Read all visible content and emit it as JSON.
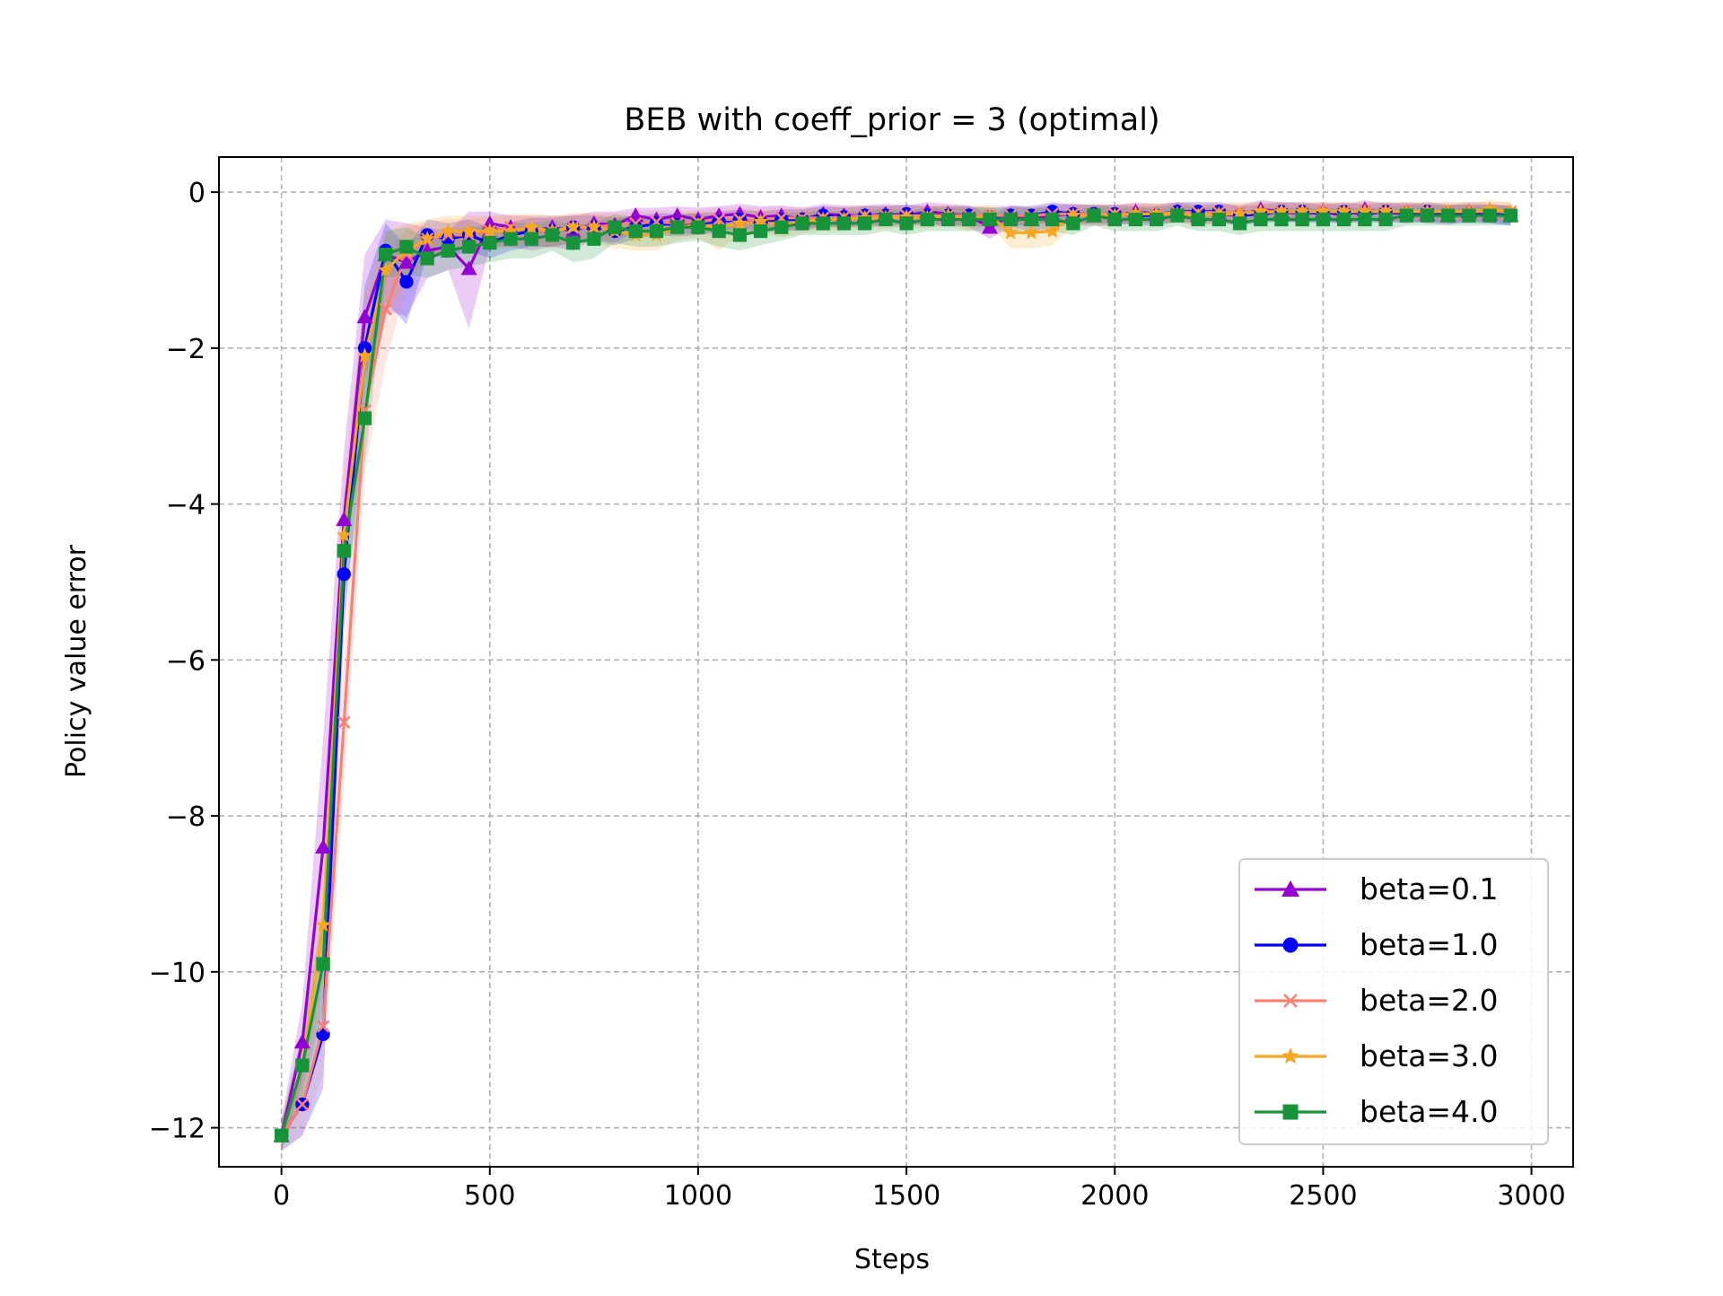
{
  "chart_data": {
    "type": "line",
    "title": "BEB with coeff_prior = 3 (optimal)",
    "xlabel": "Steps",
    "ylabel": "Policy value error",
    "xlim": [
      -150,
      3100
    ],
    "ylim": [
      -12.5,
      0.45
    ],
    "xticks": [
      0,
      500,
      1000,
      1500,
      2000,
      2500,
      3000
    ],
    "yticks": [
      0,
      -2,
      -4,
      -6,
      -8,
      -10,
      -12
    ],
    "grid": true,
    "legend_position": "lower-right",
    "x": [
      0,
      50,
      100,
      150,
      200,
      250,
      300,
      350,
      400,
      450,
      500,
      550,
      600,
      650,
      700,
      750,
      800,
      850,
      900,
      950,
      1000,
      1050,
      1100,
      1150,
      1200,
      1250,
      1300,
      1350,
      1400,
      1450,
      1500,
      1550,
      1600,
      1650,
      1700,
      1750,
      1800,
      1850,
      1900,
      1950,
      2000,
      2050,
      2100,
      2150,
      2200,
      2250,
      2300,
      2350,
      2400,
      2450,
      2500,
      2550,
      2600,
      2650,
      2700,
      2750,
      2800,
      2850,
      2900,
      2950
    ],
    "series": [
      {
        "name": "beta=0.1",
        "color": "#9400d3",
        "marker": "triangle",
        "values": [
          -12.1,
          -10.9,
          -8.4,
          -4.2,
          -1.6,
          -0.8,
          -0.9,
          -0.75,
          -0.7,
          -0.98,
          -0.4,
          -0.45,
          -0.5,
          -0.45,
          -0.5,
          -0.4,
          -0.42,
          -0.3,
          -0.35,
          -0.3,
          -0.35,
          -0.3,
          -0.28,
          -0.32,
          -0.3,
          -0.35,
          -0.28,
          -0.3,
          -0.3,
          -0.28,
          -0.3,
          -0.25,
          -0.28,
          -0.3,
          -0.45,
          -0.3,
          -0.35,
          -0.3,
          -0.28,
          -0.3,
          -0.3,
          -0.25,
          -0.28,
          -0.25,
          -0.3,
          -0.28,
          -0.3,
          -0.22,
          -0.25,
          -0.28,
          -0.25,
          -0.3,
          -0.22,
          -0.28,
          -0.25,
          -0.28,
          -0.3,
          -0.25,
          -0.28,
          -0.3
        ],
        "lower": [
          -12.3,
          -11.4,
          -9.8,
          -5.1,
          -2.4,
          -1.5,
          -1.6,
          -1.1,
          -1.0,
          -1.75,
          -0.7,
          -0.7,
          -0.75,
          -0.7,
          -0.75,
          -0.6,
          -0.65,
          -0.5,
          -0.55,
          -0.5,
          -0.55,
          -0.5,
          -0.45,
          -0.5,
          -0.48,
          -0.5,
          -0.45,
          -0.45,
          -0.45,
          -0.43,
          -0.45,
          -0.4,
          -0.42,
          -0.45,
          -0.6,
          -0.45,
          -0.5,
          -0.45,
          -0.42,
          -0.43,
          -0.43,
          -0.38,
          -0.4,
          -0.38,
          -0.42,
          -0.4,
          -0.43,
          -0.35,
          -0.38,
          -0.4,
          -0.37,
          -0.42,
          -0.35,
          -0.4,
          -0.37,
          -0.4,
          -0.42,
          -0.37,
          -0.4,
          -0.42
        ],
        "upper": [
          -11.9,
          -10.4,
          -7.0,
          -3.3,
          -0.8,
          -0.35,
          -0.4,
          -0.45,
          -0.5,
          -0.25,
          -0.25,
          -0.3,
          -0.3,
          -0.3,
          -0.3,
          -0.25,
          -0.25,
          -0.2,
          -0.2,
          -0.18,
          -0.2,
          -0.18,
          -0.15,
          -0.18,
          -0.17,
          -0.2,
          -0.15,
          -0.17,
          -0.17,
          -0.15,
          -0.17,
          -0.13,
          -0.15,
          -0.17,
          -0.3,
          -0.17,
          -0.2,
          -0.17,
          -0.15,
          -0.17,
          -0.17,
          -0.13,
          -0.15,
          -0.13,
          -0.17,
          -0.15,
          -0.17,
          -0.1,
          -0.13,
          -0.15,
          -0.13,
          -0.17,
          -0.1,
          -0.15,
          -0.13,
          -0.15,
          -0.17,
          -0.13,
          -0.15,
          -0.17
        ]
      },
      {
        "name": "beta=1.0",
        "color": "#0000ff",
        "marker": "circle",
        "values": [
          -12.1,
          -11.7,
          -10.8,
          -4.9,
          -2.0,
          -0.75,
          -1.15,
          -0.55,
          -0.6,
          -0.55,
          -0.65,
          -0.55,
          -0.5,
          -0.5,
          -0.45,
          -0.45,
          -0.5,
          -0.45,
          -0.4,
          -0.42,
          -0.4,
          -0.38,
          -0.35,
          -0.38,
          -0.35,
          -0.35,
          -0.3,
          -0.32,
          -0.3,
          -0.3,
          -0.28,
          -0.3,
          -0.3,
          -0.3,
          -0.32,
          -0.3,
          -0.3,
          -0.25,
          -0.28,
          -0.28,
          -0.28,
          -0.3,
          -0.3,
          -0.25,
          -0.25,
          -0.25,
          -0.3,
          -0.28,
          -0.25,
          -0.25,
          -0.28,
          -0.25,
          -0.28,
          -0.25,
          -0.28,
          -0.25,
          -0.28,
          -0.28,
          -0.28,
          -0.3
        ],
        "lower": [
          -12.3,
          -12.1,
          -11.5,
          -5.6,
          -2.9,
          -1.4,
          -1.7,
          -0.8,
          -0.85,
          -0.75,
          -0.85,
          -0.75,
          -0.7,
          -0.7,
          -0.65,
          -0.62,
          -0.68,
          -0.6,
          -0.55,
          -0.57,
          -0.55,
          -0.52,
          -0.5,
          -0.52,
          -0.5,
          -0.48,
          -0.43,
          -0.45,
          -0.43,
          -0.43,
          -0.4,
          -0.43,
          -0.43,
          -0.43,
          -0.45,
          -0.43,
          -0.43,
          -0.38,
          -0.4,
          -0.4,
          -0.4,
          -0.43,
          -0.43,
          -0.38,
          -0.38,
          -0.38,
          -0.43,
          -0.4,
          -0.38,
          -0.38,
          -0.4,
          -0.38,
          -0.4,
          -0.38,
          -0.4,
          -0.38,
          -0.4,
          -0.4,
          -0.4,
          -0.43
        ],
        "upper": [
          -11.9,
          -11.2,
          -10.0,
          -4.1,
          -1.2,
          -0.4,
          -0.7,
          -0.35,
          -0.4,
          -0.35,
          -0.45,
          -0.38,
          -0.33,
          -0.33,
          -0.3,
          -0.3,
          -0.33,
          -0.3,
          -0.27,
          -0.28,
          -0.27,
          -0.25,
          -0.22,
          -0.25,
          -0.22,
          -0.22,
          -0.18,
          -0.2,
          -0.18,
          -0.18,
          -0.16,
          -0.18,
          -0.18,
          -0.18,
          -0.2,
          -0.18,
          -0.18,
          -0.13,
          -0.16,
          -0.16,
          -0.16,
          -0.18,
          -0.18,
          -0.13,
          -0.13,
          -0.13,
          -0.18,
          -0.16,
          -0.13,
          -0.13,
          -0.16,
          -0.13,
          -0.16,
          -0.13,
          -0.16,
          -0.13,
          -0.16,
          -0.16,
          -0.16,
          -0.18
        ]
      },
      {
        "name": "beta=2.0",
        "color": "#fa8072",
        "marker": "x",
        "values": [
          -12.1,
          -11.7,
          -10.7,
          -6.8,
          -2.8,
          -1.5,
          -0.8,
          -0.6,
          -0.55,
          -0.55,
          -0.5,
          -0.45,
          -0.5,
          -0.5,
          -0.45,
          -0.45,
          -0.42,
          -0.4,
          -0.38,
          -0.4,
          -0.38,
          -0.35,
          -0.35,
          -0.35,
          -0.33,
          -0.33,
          -0.33,
          -0.32,
          -0.3,
          -0.3,
          -0.3,
          -0.3,
          -0.3,
          -0.3,
          -0.3,
          -0.3,
          -0.3,
          -0.28,
          -0.28,
          -0.28,
          -0.28,
          -0.28,
          -0.28,
          -0.26,
          -0.26,
          -0.26,
          -0.26,
          -0.26,
          -0.25,
          -0.25,
          -0.25,
          -0.25,
          -0.25,
          -0.25,
          -0.25,
          -0.25,
          -0.25,
          -0.25,
          -0.25,
          -0.25
        ],
        "lower": [
          -12.3,
          -12.1,
          -11.3,
          -7.6,
          -3.6,
          -2.2,
          -1.2,
          -0.85,
          -0.78,
          -0.75,
          -0.7,
          -0.65,
          -0.7,
          -0.7,
          -0.62,
          -0.62,
          -0.58,
          -0.55,
          -0.53,
          -0.55,
          -0.53,
          -0.5,
          -0.5,
          -0.5,
          -0.47,
          -0.47,
          -0.47,
          -0.45,
          -0.43,
          -0.43,
          -0.43,
          -0.43,
          -0.43,
          -0.43,
          -0.43,
          -0.43,
          -0.43,
          -0.4,
          -0.4,
          -0.4,
          -0.4,
          -0.4,
          -0.4,
          -0.38,
          -0.38,
          -0.38,
          -0.38,
          -0.38,
          -0.37,
          -0.37,
          -0.37,
          -0.37,
          -0.37,
          -0.37,
          -0.37,
          -0.37,
          -0.37,
          -0.37,
          -0.37,
          -0.37
        ],
        "upper": [
          -11.9,
          -11.3,
          -10.0,
          -6.0,
          -2.0,
          -0.9,
          -0.45,
          -0.38,
          -0.35,
          -0.35,
          -0.32,
          -0.28,
          -0.32,
          -0.32,
          -0.28,
          -0.28,
          -0.27,
          -0.25,
          -0.23,
          -0.25,
          -0.23,
          -0.2,
          -0.2,
          -0.2,
          -0.19,
          -0.19,
          -0.19,
          -0.18,
          -0.17,
          -0.17,
          -0.17,
          -0.17,
          -0.17,
          -0.17,
          -0.17,
          -0.17,
          -0.17,
          -0.15,
          -0.15,
          -0.15,
          -0.15,
          -0.15,
          -0.15,
          -0.13,
          -0.13,
          -0.13,
          -0.13,
          -0.13,
          -0.13,
          -0.13,
          -0.13,
          -0.13,
          -0.13,
          -0.13,
          -0.13,
          -0.13,
          -0.13,
          -0.13,
          -0.13,
          -0.13
        ]
      },
      {
        "name": "beta=3.0",
        "color": "#f5a623",
        "marker": "star",
        "values": [
          -12.1,
          -11.2,
          -9.4,
          -4.4,
          -2.1,
          -1.0,
          -0.75,
          -0.6,
          -0.5,
          -0.5,
          -0.5,
          -0.5,
          -0.45,
          -0.5,
          -0.45,
          -0.45,
          -0.5,
          -0.55,
          -0.55,
          -0.45,
          -0.42,
          -0.45,
          -0.4,
          -0.38,
          -0.42,
          -0.38,
          -0.35,
          -0.35,
          -0.33,
          -0.33,
          -0.32,
          -0.33,
          -0.3,
          -0.35,
          -0.3,
          -0.52,
          -0.52,
          -0.5,
          -0.3,
          -0.3,
          -0.3,
          -0.28,
          -0.28,
          -0.28,
          -0.3,
          -0.28,
          -0.28,
          -0.25,
          -0.25,
          -0.25,
          -0.25,
          -0.25,
          -0.25,
          -0.25,
          -0.25,
          -0.25,
          -0.25,
          -0.25,
          -0.22,
          -0.25
        ],
        "lower": [
          -12.3,
          -11.6,
          -10.1,
          -5.1,
          -2.9,
          -1.6,
          -1.1,
          -0.85,
          -0.72,
          -0.72,
          -0.72,
          -0.72,
          -0.65,
          -0.72,
          -0.65,
          -0.65,
          -0.72,
          -0.75,
          -0.75,
          -0.62,
          -0.58,
          -0.75,
          -0.55,
          -0.53,
          -0.58,
          -0.53,
          -0.5,
          -0.5,
          -0.47,
          -0.47,
          -0.45,
          -0.47,
          -0.43,
          -0.5,
          -0.43,
          -0.72,
          -0.72,
          -0.68,
          -0.43,
          -0.43,
          -0.43,
          -0.4,
          -0.4,
          -0.4,
          -0.43,
          -0.4,
          -0.4,
          -0.37,
          -0.37,
          -0.37,
          -0.37,
          -0.37,
          -0.37,
          -0.37,
          -0.37,
          -0.37,
          -0.37,
          -0.37,
          -0.34,
          -0.37
        ],
        "upper": [
          -11.9,
          -10.8,
          -8.7,
          -3.7,
          -1.3,
          -0.5,
          -0.4,
          -0.35,
          -0.3,
          -0.3,
          -0.3,
          -0.3,
          -0.27,
          -0.3,
          -0.27,
          -0.27,
          -0.3,
          -0.35,
          -0.35,
          -0.28,
          -0.25,
          -0.28,
          -0.25,
          -0.23,
          -0.25,
          -0.23,
          -0.2,
          -0.2,
          -0.19,
          -0.19,
          -0.18,
          -0.19,
          -0.17,
          -0.2,
          -0.17,
          -0.35,
          -0.35,
          -0.33,
          -0.17,
          -0.17,
          -0.17,
          -0.15,
          -0.15,
          -0.15,
          -0.17,
          -0.15,
          -0.15,
          -0.13,
          -0.13,
          -0.13,
          -0.13,
          -0.13,
          -0.13,
          -0.13,
          -0.13,
          -0.13,
          -0.13,
          -0.13,
          -0.1,
          -0.13
        ]
      },
      {
        "name": "beta=4.0",
        "color": "#17943a",
        "marker": "square",
        "values": [
          -12.1,
          -11.2,
          -9.9,
          -4.6,
          -2.9,
          -0.8,
          -0.7,
          -0.85,
          -0.75,
          -0.7,
          -0.65,
          -0.6,
          -0.6,
          -0.55,
          -0.65,
          -0.6,
          -0.45,
          -0.5,
          -0.5,
          -0.45,
          -0.45,
          -0.5,
          -0.55,
          -0.5,
          -0.45,
          -0.4,
          -0.4,
          -0.4,
          -0.4,
          -0.35,
          -0.4,
          -0.35,
          -0.35,
          -0.35,
          -0.35,
          -0.35,
          -0.35,
          -0.35,
          -0.4,
          -0.3,
          -0.35,
          -0.35,
          -0.35,
          -0.3,
          -0.35,
          -0.35,
          -0.4,
          -0.35,
          -0.35,
          -0.35,
          -0.35,
          -0.35,
          -0.35,
          -0.35,
          -0.3,
          -0.3,
          -0.3,
          -0.3,
          -0.3,
          -0.3
        ],
        "lower": [
          -12.3,
          -11.6,
          -10.5,
          -5.3,
          -3.5,
          -1.1,
          -1.05,
          -1.1,
          -1.0,
          -0.95,
          -0.9,
          -0.85,
          -0.85,
          -0.75,
          -0.9,
          -0.85,
          -0.65,
          -0.7,
          -0.7,
          -0.65,
          -0.62,
          -0.7,
          -0.75,
          -0.68,
          -0.62,
          -0.55,
          -0.55,
          -0.55,
          -0.55,
          -0.5,
          -0.55,
          -0.5,
          -0.5,
          -0.5,
          -0.5,
          -0.5,
          -0.5,
          -0.5,
          -0.55,
          -0.43,
          -0.5,
          -0.5,
          -0.5,
          -0.43,
          -0.5,
          -0.5,
          -0.55,
          -0.5,
          -0.5,
          -0.5,
          -0.5,
          -0.5,
          -0.5,
          -0.5,
          -0.43,
          -0.43,
          -0.43,
          -0.43,
          -0.43,
          -0.43
        ],
        "upper": [
          -11.9,
          -10.8,
          -9.2,
          -3.9,
          -2.3,
          -0.5,
          -0.45,
          -0.6,
          -0.5,
          -0.45,
          -0.42,
          -0.4,
          -0.4,
          -0.36,
          -0.42,
          -0.4,
          -0.28,
          -0.32,
          -0.32,
          -0.28,
          -0.28,
          -0.32,
          -0.35,
          -0.32,
          -0.28,
          -0.25,
          -0.25,
          -0.25,
          -0.25,
          -0.2,
          -0.25,
          -0.2,
          -0.2,
          -0.2,
          -0.2,
          -0.2,
          -0.2,
          -0.2,
          -0.25,
          -0.17,
          -0.2,
          -0.2,
          -0.2,
          -0.17,
          -0.2,
          -0.2,
          -0.25,
          -0.2,
          -0.2,
          -0.2,
          -0.2,
          -0.2,
          -0.2,
          -0.2,
          -0.17,
          -0.17,
          -0.17,
          -0.17,
          -0.17,
          -0.17
        ]
      }
    ]
  }
}
